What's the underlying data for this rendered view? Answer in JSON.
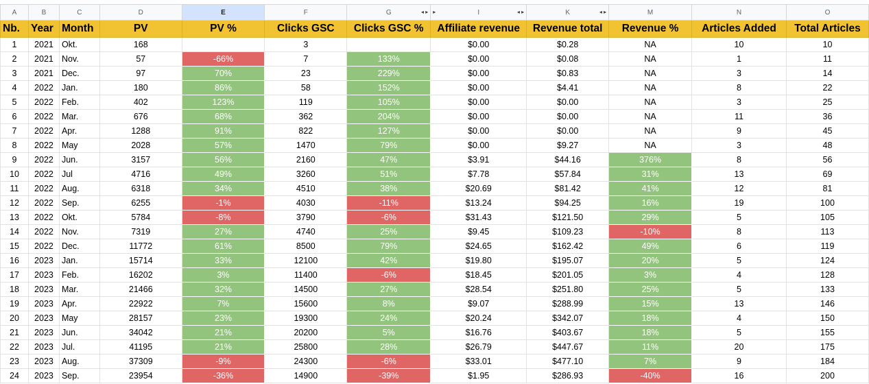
{
  "column_letters": [
    "A",
    "B",
    "C",
    "D",
    "E",
    "F",
    "G",
    "I",
    "K",
    "M",
    "N",
    "O"
  ],
  "header_row": [
    "Nb.",
    "Year",
    "Month",
    "PV",
    "PV %",
    "Clicks GSC",
    "Clicks GSC %",
    "Affiliate revenue",
    "Revenue total",
    "Revenue %",
    "Articles Added",
    "Total Articles"
  ],
  "rows": [
    [
      "1",
      "2021",
      "Okt.",
      "168",
      "",
      "3",
      "",
      "$0.00",
      "$0.28",
      "NA",
      "10",
      "10"
    ],
    [
      "2",
      "2021",
      "Nov.",
      "57",
      "-66%",
      "7",
      "133%",
      "$0.00",
      "$0.08",
      "NA",
      "1",
      "11"
    ],
    [
      "3",
      "2021",
      "Dec.",
      "97",
      "70%",
      "23",
      "229%",
      "$0.00",
      "$0.83",
      "NA",
      "3",
      "14"
    ],
    [
      "4",
      "2022",
      "Jan.",
      "180",
      "86%",
      "58",
      "152%",
      "$0.00",
      "$4.41",
      "NA",
      "8",
      "22"
    ],
    [
      "5",
      "2022",
      "Feb.",
      "402",
      "123%",
      "119",
      "105%",
      "$0.00",
      "$0.00",
      "NA",
      "3",
      "25"
    ],
    [
      "6",
      "2022",
      "Mar.",
      "676",
      "68%",
      "362",
      "204%",
      "$0.00",
      "$0.00",
      "NA",
      "11",
      "36"
    ],
    [
      "7",
      "2022",
      "Apr.",
      "1288",
      "91%",
      "822",
      "127%",
      "$0.00",
      "$0.00",
      "NA",
      "9",
      "45"
    ],
    [
      "8",
      "2022",
      "May",
      "2028",
      "57%",
      "1470",
      "79%",
      "$0.00",
      "$9.27",
      "NA",
      "3",
      "48"
    ],
    [
      "9",
      "2022",
      "Jun.",
      "3157",
      "56%",
      "2160",
      "47%",
      "$3.91",
      "$44.16",
      "376%",
      "8",
      "56"
    ],
    [
      "10",
      "2022",
      "Jul",
      "4716",
      "49%",
      "3260",
      "51%",
      "$7.78",
      "$57.84",
      "31%",
      "13",
      "69"
    ],
    [
      "11",
      "2022",
      "Aug.",
      "6318",
      "34%",
      "4510",
      "38%",
      "$20.69",
      "$81.42",
      "41%",
      "12",
      "81"
    ],
    [
      "12",
      "2022",
      "Sep.",
      "6255",
      "-1%",
      "4030",
      "-11%",
      "$13.24",
      "$94.25",
      "16%",
      "19",
      "100"
    ],
    [
      "13",
      "2022",
      "Okt.",
      "5784",
      "-8%",
      "3790",
      "-6%",
      "$31.43",
      "$121.50",
      "29%",
      "5",
      "105"
    ],
    [
      "14",
      "2022",
      "Nov.",
      "7319",
      "27%",
      "4740",
      "25%",
      "$9.45",
      "$109.23",
      "-10%",
      "8",
      "113"
    ],
    [
      "15",
      "2022",
      "Dec.",
      "11772",
      "61%",
      "8500",
      "79%",
      "$24.65",
      "$162.42",
      "49%",
      "6",
      "119"
    ],
    [
      "16",
      "2023",
      "Jan.",
      "15714",
      "33%",
      "12100",
      "42%",
      "$19.80",
      "$195.07",
      "20%",
      "5",
      "124"
    ],
    [
      "17",
      "2023",
      "Feb.",
      "16202",
      "3%",
      "11400",
      "-6%",
      "$18.45",
      "$201.05",
      "3%",
      "4",
      "128"
    ],
    [
      "18",
      "2023",
      "Mar.",
      "21466",
      "32%",
      "14500",
      "27%",
      "$28.54",
      "$251.80",
      "25%",
      "5",
      "133"
    ],
    [
      "19",
      "2023",
      "Apr.",
      "22922",
      "7%",
      "15600",
      "8%",
      "$9.07",
      "$288.99",
      "15%",
      "13",
      "146"
    ],
    [
      "20",
      "2023",
      "May",
      "28157",
      "23%",
      "19300",
      "24%",
      "$20.24",
      "$342.07",
      "18%",
      "4",
      "150"
    ],
    [
      "21",
      "2023",
      "Jun.",
      "34042",
      "21%",
      "20200",
      "5%",
      "$16.76",
      "$403.67",
      "18%",
      "5",
      "155"
    ],
    [
      "22",
      "2023",
      "Jul.",
      "41195",
      "21%",
      "25800",
      "28%",
      "$26.79",
      "$447.67",
      "11%",
      "20",
      "175"
    ],
    [
      "23",
      "2023",
      "Aug.",
      "37309",
      "-9%",
      "24300",
      "-6%",
      "$33.01",
      "$477.10",
      "7%",
      "9",
      "184"
    ],
    [
      "24",
      "2023",
      "Sep.",
      "23954",
      "-36%",
      "14900",
      "-39%",
      "$1.95",
      "$286.93",
      "-40%",
      "16",
      "200"
    ]
  ],
  "colors": {
    "header_yellow": "#f1c232",
    "positive_green": "#93c47d",
    "negative_red": "#e06666",
    "selected_column": "#d3e3fd"
  },
  "selected_column": "E"
}
